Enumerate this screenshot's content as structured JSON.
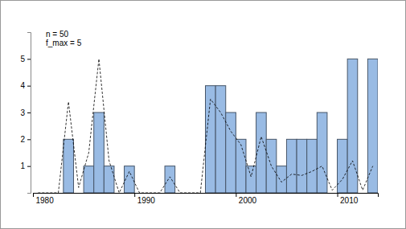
{
  "chart_data": {
    "type": "histogram",
    "bins": [
      1980,
      1981,
      1982,
      1983,
      1984,
      1985,
      1986,
      1987,
      1988,
      1989,
      1990,
      1991,
      1992,
      1993,
      1994,
      1995,
      1996,
      1997,
      1998,
      1999,
      2000,
      2001,
      2002,
      2003,
      2004,
      2005,
      2006,
      2007,
      2008,
      2009,
      2010,
      2011,
      2012,
      2013,
      2014
    ],
    "values": [
      0,
      0,
      0,
      2,
      0,
      1,
      3,
      1,
      0,
      1,
      0,
      0,
      0,
      1,
      0,
      0,
      0,
      4,
      4,
      3,
      2,
      1,
      3,
      2,
      1,
      2,
      2,
      2,
      3,
      0,
      2,
      5,
      0,
      5
    ],
    "color": "#99bbe4",
    "series": [
      {
        "type": "line",
        "line_style": "dashed",
        "color": "#000000",
        "values": [
          0,
          0,
          0,
          3.4,
          0.2,
          1.5,
          5,
          1.2,
          0,
          0.8,
          0,
          0,
          0,
          0.6,
          0,
          0,
          0,
          3.5,
          3,
          2.3,
          1.8,
          0.6,
          2.1,
          1,
          0.4,
          0.7,
          0.65,
          0.8,
          1,
          0.1,
          0.5,
          1.2,
          0.1,
          1
        ]
      }
    ],
    "xlim": [
      1980,
      2014
    ],
    "xticks": [
      1980,
      1990,
      2000,
      2010
    ],
    "ylim": [
      0,
      6
    ],
    "yticks": [
      1,
      2,
      3,
      4,
      5
    ],
    "annotations": [
      "n = 50",
      "f_max = 5"
    ]
  }
}
